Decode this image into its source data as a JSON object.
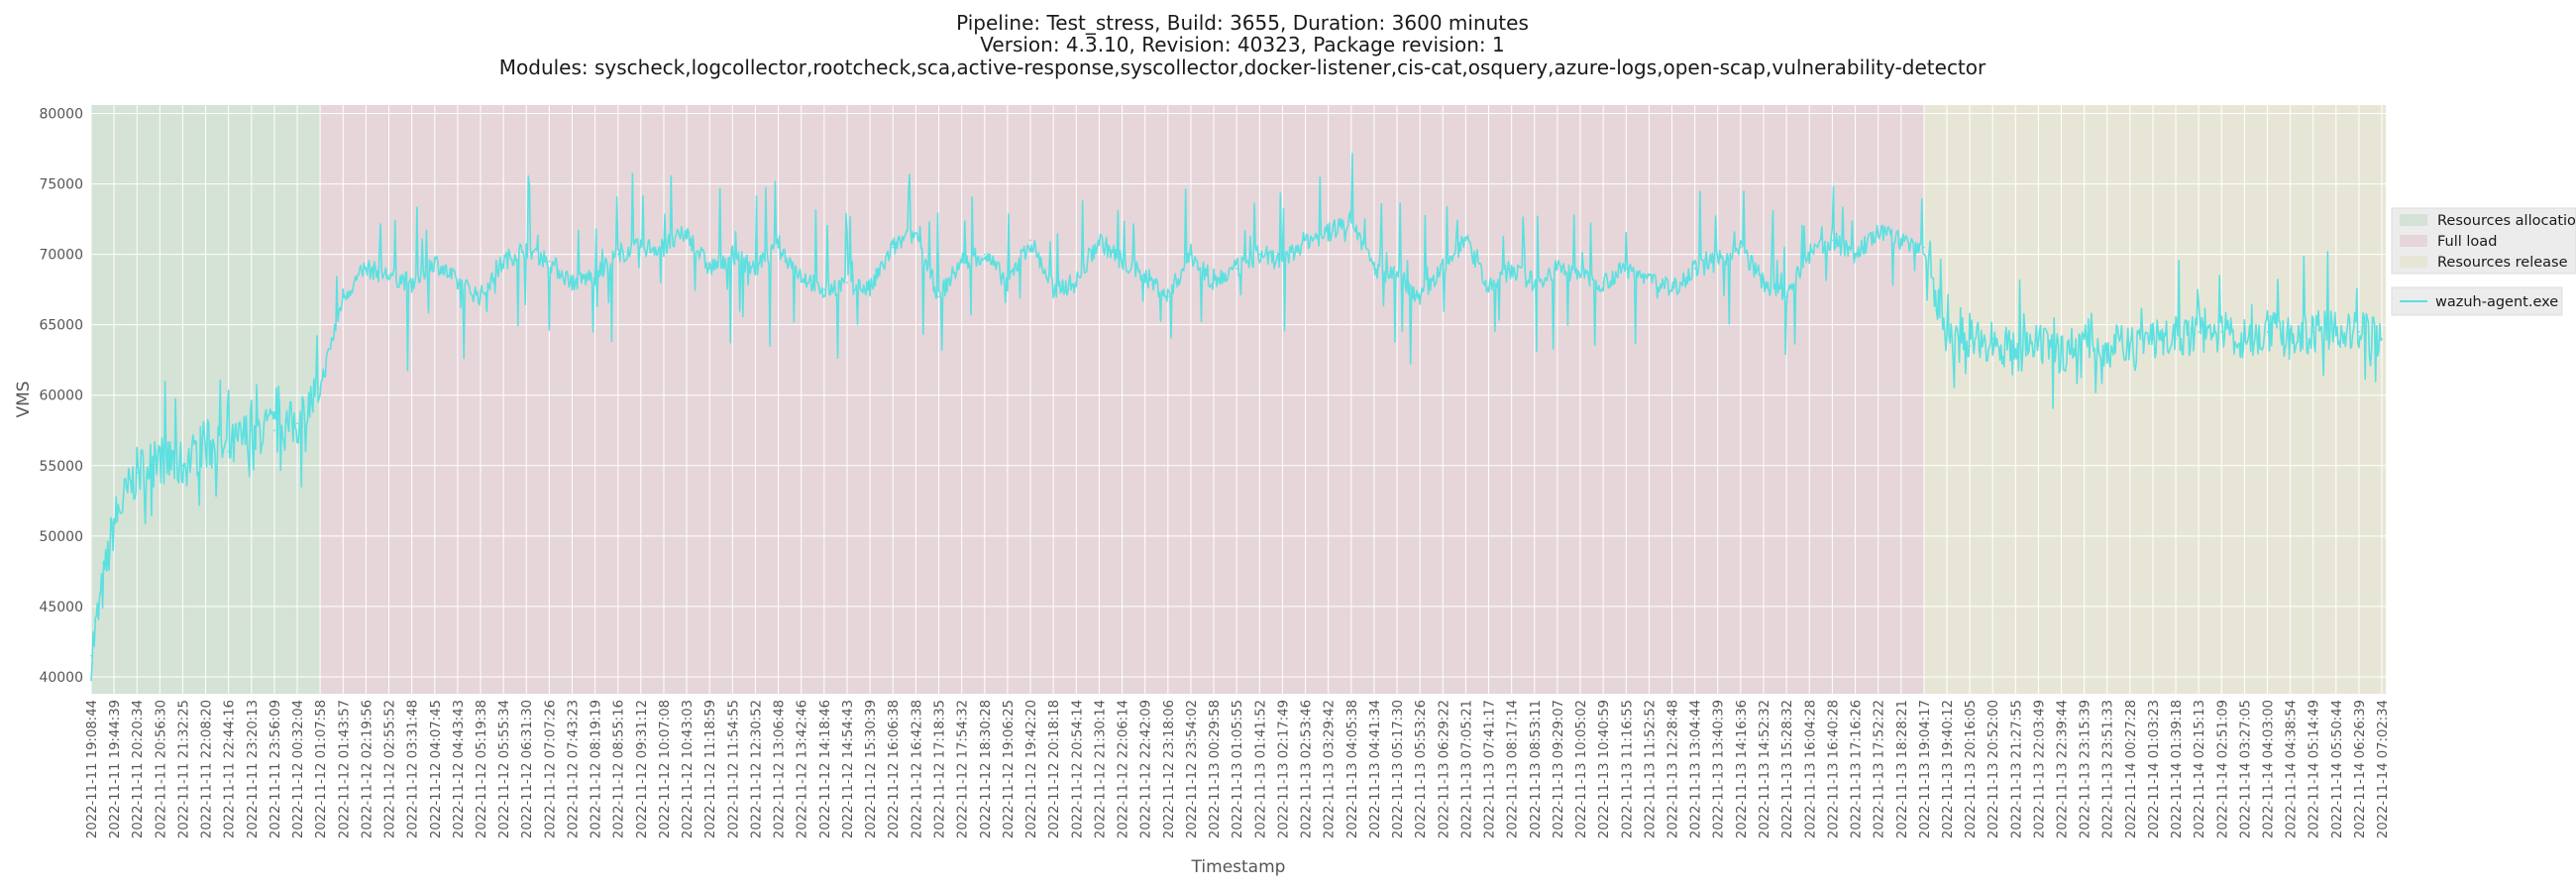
{
  "chart_data": {
    "type": "line",
    "title_lines": [
      "Pipeline: Test_stress, Build: 3655, Duration: 3600 minutes",
      "Version: 4.3.10, Revision: 40323, Package revision: 1",
      "Modules: syscheck,logcollector,rootcheck,sca,active-response,syscollector,docker-listener,cis-cat,osquery,azure-logs,open-scap,vulnerability-detector"
    ],
    "xlabel": "Timestamp",
    "ylabel": "VMS",
    "ylim": [
      38800,
      80600
    ],
    "yticks": [
      40000,
      45000,
      50000,
      55000,
      60000,
      65000,
      70000,
      75000,
      80000
    ],
    "x_start": "2022-11-11 19:08:44",
    "x_end": "2022-11-14 07:08:44",
    "x_tick_labels": [
      "2022-11-11 19:08:44",
      "2022-11-11 19:44:39",
      "2022-11-11 20:20:34",
      "2022-11-11 20:56:30",
      "2022-11-11 21:32:25",
      "2022-11-11 22:08:20",
      "2022-11-11 22:44:16",
      "2022-11-11 23:20:13",
      "2022-11-11 23:56:09",
      "2022-11-12 00:32:04",
      "2022-11-12 01:07:58",
      "2022-11-12 01:43:57",
      "2022-11-12 02:19:56",
      "2022-11-12 02:55:52",
      "2022-11-12 03:31:48",
      "2022-11-12 04:07:45",
      "2022-11-12 04:43:43",
      "2022-11-12 05:19:38",
      "2022-11-12 05:55:34",
      "2022-11-12 06:31:30",
      "2022-11-12 07:07:26",
      "2022-11-12 07:43:23",
      "2022-11-12 08:19:19",
      "2022-11-12 08:55:16",
      "2022-11-12 09:31:12",
      "2022-11-12 10:07:08",
      "2022-11-12 10:43:03",
      "2022-11-12 11:18:59",
      "2022-11-12 11:54:55",
      "2022-11-12 12:30:52",
      "2022-11-12 13:06:48",
      "2022-11-12 13:42:46",
      "2022-11-12 14:18:46",
      "2022-11-12 14:54:43",
      "2022-11-12 15:30:39",
      "2022-11-12 16:06:38",
      "2022-11-12 16:42:38",
      "2022-11-12 17:18:35",
      "2022-11-12 17:54:32",
      "2022-11-12 18:30:28",
      "2022-11-12 19:06:25",
      "2022-11-12 19:42:20",
      "2022-11-12 20:18:18",
      "2022-11-12 20:54:14",
      "2022-11-12 21:30:14",
      "2022-11-12 22:06:14",
      "2022-11-12 22:42:09",
      "2022-11-12 23:18:06",
      "2022-11-12 23:54:02",
      "2022-11-13 00:29:58",
      "2022-11-13 01:05:55",
      "2022-11-13 01:41:52",
      "2022-11-13 02:17:49",
      "2022-11-13 02:53:46",
      "2022-11-13 03:29:42",
      "2022-11-13 04:05:38",
      "2022-11-13 04:41:34",
      "2022-11-13 05:17:30",
      "2022-11-13 05:53:26",
      "2022-11-13 06:29:22",
      "2022-11-13 07:05:21",
      "2022-11-13 07:41:17",
      "2022-11-13 08:17:14",
      "2022-11-13 08:53:11",
      "2022-11-13 09:29:07",
      "2022-11-13 10:05:02",
      "2022-11-13 10:40:59",
      "2022-11-13 11:16:55",
      "2022-11-13 11:52:52",
      "2022-11-13 12:28:48",
      "2022-11-13 13:04:44",
      "2022-11-13 13:40:39",
      "2022-11-13 14:16:36",
      "2022-11-13 14:52:32",
      "2022-11-13 15:28:32",
      "2022-11-13 16:04:28",
      "2022-11-13 16:40:28",
      "2022-11-13 17:16:26",
      "2022-11-13 17:52:22",
      "2022-11-13 18:28:21",
      "2022-11-13 19:04:17",
      "2022-11-13 19:40:12",
      "2022-11-13 20:16:05",
      "2022-11-13 20:52:00",
      "2022-11-13 21:27:55",
      "2022-11-13 22:03:49",
      "2022-11-13 22:39:44",
      "2022-11-13 23:15:39",
      "2022-11-13 23:51:33",
      "2022-11-14 00:27:28",
      "2022-11-14 01:03:23",
      "2022-11-14 01:39:18",
      "2022-11-14 02:15:13",
      "2022-11-14 02:51:09",
      "2022-11-14 03:27:05",
      "2022-11-14 04:03:00",
      "2022-11-14 04:38:54",
      "2022-11-14 05:14:49",
      "2022-11-14 05:50:44",
      "2022-11-14 06:26:39",
      "2022-11-14 07:02:34"
    ],
    "phases": [
      {
        "name": "Resources allocation",
        "start": "2022-11-11 19:08:44",
        "end": "2022-11-12 01:07:58",
        "color": "#d5e2d6"
      },
      {
        "name": "Full load",
        "start": "2022-11-12 01:07:58",
        "end": "2022-11-13 19:04:17",
        "color": "#e6d6d9"
      },
      {
        "name": "Resources release",
        "start": "2022-11-13 19:04:17",
        "end": "2022-11-14 07:08:44",
        "color": "#e7e6d6"
      }
    ],
    "series": [
      {
        "name": "wazuh-agent.exe",
        "color": "#5ce0e0",
        "points": [
          [
            "2022-11-11 19:08:44",
            41500
          ],
          [
            "2022-11-11 19:44:39",
            51000
          ],
          [
            "2022-11-11 20:20:34",
            54500
          ],
          [
            "2022-11-11 20:56:30",
            55500
          ],
          [
            "2022-11-11 21:32:25",
            55000
          ],
          [
            "2022-11-11 22:08:20",
            56500
          ],
          [
            "2022-11-11 22:44:16",
            56000
          ],
          [
            "2022-11-11 23:20:13",
            57500
          ],
          [
            "2022-11-11 23:56:09",
            57500
          ],
          [
            "2022-11-12 00:32:04",
            58000
          ],
          [
            "2022-11-12 01:07:58",
            60500
          ],
          [
            "2022-11-12 01:43:57",
            67000
          ],
          [
            "2022-11-12 02:19:56",
            69000
          ],
          [
            "2022-11-12 02:55:52",
            68500
          ],
          [
            "2022-11-12 03:31:48",
            68000
          ],
          [
            "2022-11-12 04:07:45",
            69500
          ],
          [
            "2022-11-12 04:43:43",
            68000
          ],
          [
            "2022-11-12 05:19:38",
            67000
          ],
          [
            "2022-11-12 05:55:34",
            69500
          ],
          [
            "2022-11-12 06:31:30",
            70500
          ],
          [
            "2022-11-12 07:07:26",
            69500
          ],
          [
            "2022-11-12 07:43:23",
            68000
          ],
          [
            "2022-11-12 08:19:19",
            68500
          ],
          [
            "2022-11-12 08:55:16",
            70000
          ],
          [
            "2022-11-12 09:31:12",
            70500
          ],
          [
            "2022-11-12 10:07:08",
            70500
          ],
          [
            "2022-11-12 10:43:03",
            71500
          ],
          [
            "2022-11-12 11:18:59",
            69000
          ],
          [
            "2022-11-12 11:54:55",
            70000
          ],
          [
            "2022-11-12 12:30:52",
            69000
          ],
          [
            "2022-11-12 13:06:48",
            70500
          ],
          [
            "2022-11-12 13:42:46",
            68500
          ],
          [
            "2022-11-12 14:18:46",
            67500
          ],
          [
            "2022-11-12 14:54:43",
            68000
          ],
          [
            "2022-11-12 15:30:39",
            67500
          ],
          [
            "2022-11-12 16:06:38",
            70500
          ],
          [
            "2022-11-12 16:42:38",
            71500
          ],
          [
            "2022-11-12 17:18:35",
            67000
          ],
          [
            "2022-11-12 17:54:32",
            69500
          ],
          [
            "2022-11-12 18:30:28",
            70000
          ],
          [
            "2022-11-12 19:06:25",
            68000
          ],
          [
            "2022-11-12 19:42:20",
            71000
          ],
          [
            "2022-11-12 20:18:18",
            67500
          ],
          [
            "2022-11-12 20:54:14",
            68000
          ],
          [
            "2022-11-12 21:30:14",
            71000
          ],
          [
            "2022-11-12 22:06:14",
            69500
          ],
          [
            "2022-11-12 22:42:09",
            68500
          ],
          [
            "2022-11-12 23:18:06",
            67000
          ],
          [
            "2022-11-12 23:54:02",
            70000
          ],
          [
            "2022-11-13 00:29:58",
            68000
          ],
          [
            "2022-11-13 01:05:55",
            69000
          ],
          [
            "2022-11-13 01:41:52",
            70000
          ],
          [
            "2022-11-13 02:17:49",
            69500
          ],
          [
            "2022-11-13 02:53:46",
            71000
          ],
          [
            "2022-11-13 03:29:42",
            71500
          ],
          [
            "2022-11-13 04:05:38",
            72500
          ],
          [
            "2022-11-13 04:41:34",
            69000
          ],
          [
            "2022-11-13 05:17:30",
            68500
          ],
          [
            "2022-11-13 05:53:26",
            67000
          ],
          [
            "2022-11-13 06:29:22",
            69000
          ],
          [
            "2022-11-13 07:05:21",
            71000
          ],
          [
            "2022-11-13 07:41:17",
            67500
          ],
          [
            "2022-11-13 08:17:14",
            69000
          ],
          [
            "2022-11-13 08:53:11",
            68000
          ],
          [
            "2022-11-13 09:29:07",
            69000
          ],
          [
            "2022-11-13 10:05:02",
            68500
          ],
          [
            "2022-11-13 10:40:59",
            68000
          ],
          [
            "2022-11-13 11:16:55",
            69000
          ],
          [
            "2022-11-13 11:52:52",
            68500
          ],
          [
            "2022-11-13 12:28:48",
            67500
          ],
          [
            "2022-11-13 13:04:44",
            69000
          ],
          [
            "2022-11-13 13:40:39",
            69500
          ],
          [
            "2022-11-13 14:16:36",
            70500
          ],
          [
            "2022-11-13 14:52:32",
            68000
          ],
          [
            "2022-11-13 15:28:32",
            67000
          ],
          [
            "2022-11-13 16:04:28",
            70000
          ],
          [
            "2022-11-13 16:40:28",
            71000
          ],
          [
            "2022-11-13 17:16:26",
            70000
          ],
          [
            "2022-11-13 17:52:22",
            71500
          ],
          [
            "2022-11-13 18:28:21",
            71000
          ],
          [
            "2022-11-13 19:04:17",
            70500
          ],
          [
            "2022-11-13 19:40:12",
            64000
          ],
          [
            "2022-11-13 20:16:05",
            63500
          ],
          [
            "2022-11-13 20:52:00",
            64000
          ],
          [
            "2022-11-13 21:27:55",
            63000
          ],
          [
            "2022-11-13 22:03:49",
            63500
          ],
          [
            "2022-11-13 22:39:44",
            63000
          ],
          [
            "2022-11-13 23:15:39",
            64000
          ],
          [
            "2022-11-13 23:51:33",
            63500
          ],
          [
            "2022-11-14 00:27:28",
            63500
          ],
          [
            "2022-11-14 01:03:23",
            64000
          ],
          [
            "2022-11-14 01:39:18",
            64000
          ],
          [
            "2022-11-14 02:15:13",
            64500
          ],
          [
            "2022-11-14 02:51:09",
            64500
          ],
          [
            "2022-11-14 03:27:05",
            64000
          ],
          [
            "2022-11-14 04:03:00",
            64500
          ],
          [
            "2022-11-14 04:38:54",
            64000
          ],
          [
            "2022-11-14 05:14:49",
            64500
          ],
          [
            "2022-11-14 05:50:44",
            64500
          ],
          [
            "2022-11-14 06:26:39",
            64500
          ],
          [
            "2022-11-14 07:02:34",
            64000
          ]
        ]
      }
    ],
    "grid": true,
    "legend_placement": "right"
  },
  "colors": {
    "grid": "#ffffff",
    "tick_text": "#555555",
    "legend_bg": "#e5e5e5"
  }
}
